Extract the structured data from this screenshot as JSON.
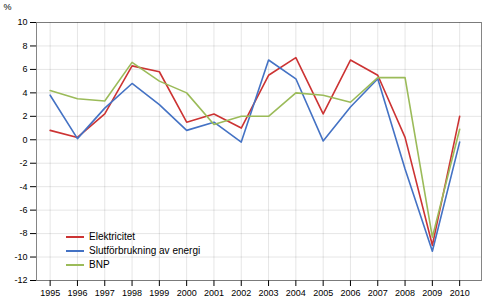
{
  "chart_data": {
    "type": "line",
    "ylabel": "%",
    "x": [
      1995,
      1996,
      1997,
      1998,
      1999,
      2000,
      2001,
      2002,
      2003,
      2004,
      2005,
      2006,
      2007,
      2008,
      2009,
      2010
    ],
    "series": [
      {
        "name": "Elektricitet",
        "color": "#cc3333",
        "values": [
          0.8,
          0.2,
          2.2,
          6.3,
          5.8,
          1.5,
          2.2,
          1.0,
          5.5,
          7.0,
          2.2,
          6.8,
          5.5,
          0.2,
          -9.0,
          2.0
        ]
      },
      {
        "name": "Slutförbrukning av energi",
        "color": "#4472c4",
        "values": [
          3.8,
          0.1,
          2.7,
          4.8,
          3.0,
          0.8,
          1.5,
          -0.2,
          6.8,
          5.2,
          -0.1,
          2.8,
          5.2,
          -2.5,
          -9.5,
          -0.2
        ]
      },
      {
        "name": "BNP",
        "color": "#9bbb59",
        "values": [
          4.2,
          3.5,
          3.3,
          6.6,
          5.0,
          4.0,
          1.3,
          2.0,
          2.0,
          4.0,
          3.8,
          3.2,
          5.3,
          5.3,
          -8.3,
          0.9
        ]
      }
    ],
    "xlim": [
      1994.5,
      2010.8
    ],
    "xticks": [
      1995,
      1996,
      1997,
      1998,
      1999,
      2000,
      2001,
      2002,
      2003,
      2004,
      2005,
      2006,
      2007,
      2008,
      2009,
      2010
    ],
    "ylim": [
      -12,
      10
    ],
    "yticks": [
      -12,
      -10,
      -8,
      -6,
      -4,
      -2,
      0,
      2,
      4,
      6,
      8,
      10
    ],
    "grid": true,
    "legend": "lower left"
  }
}
